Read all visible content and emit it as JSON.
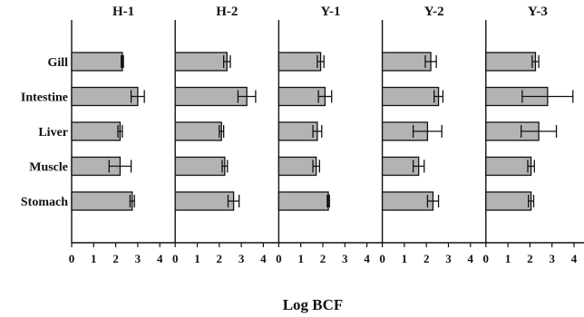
{
  "chart_data": {
    "type": "bar",
    "orientation": "horizontal",
    "xlabel": "Log BCF",
    "xlim": [
      0,
      4.7
    ],
    "xticks": [
      0,
      1,
      2,
      3,
      4
    ],
    "categories": [
      "Gill",
      "Intestine",
      "Liver",
      "Muscle",
      "Stomach"
    ],
    "bar_color": "#b3b3b3",
    "error_bars": true,
    "panels": [
      {
        "title": "H-1",
        "values": [
          2.3,
          3.0,
          2.2,
          2.2,
          2.75
        ],
        "errors": [
          0.05,
          0.3,
          0.1,
          0.5,
          0.1
        ]
      },
      {
        "title": "H-2",
        "values": [
          2.35,
          3.25,
          2.1,
          2.25,
          2.65
        ],
        "errors": [
          0.15,
          0.4,
          0.1,
          0.12,
          0.25
        ]
      },
      {
        "title": "Y-1",
        "values": [
          1.9,
          2.1,
          1.75,
          1.7,
          2.25
        ],
        "errors": [
          0.15,
          0.3,
          0.2,
          0.15,
          0.05
        ]
      },
      {
        "title": "Y-2",
        "values": [
          2.2,
          2.55,
          2.05,
          1.65,
          2.3
        ],
        "errors": [
          0.25,
          0.2,
          0.65,
          0.25,
          0.25
        ]
      },
      {
        "title": "Y-3",
        "values": [
          2.25,
          2.8,
          2.4,
          2.05,
          2.05
        ],
        "errors": [
          0.15,
          1.15,
          0.8,
          0.15,
          0.12
        ]
      }
    ]
  }
}
